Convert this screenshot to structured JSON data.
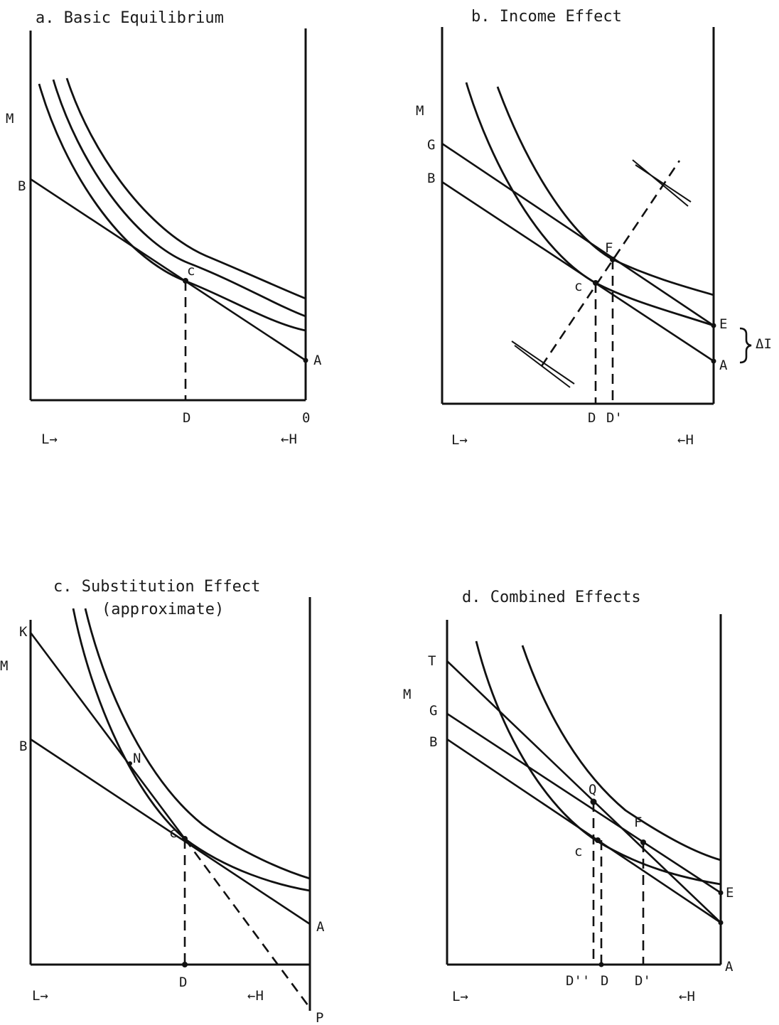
{
  "panel_a": {
    "title": "a.  Basic Equilibrium",
    "labels": {
      "M": "M",
      "B": "B",
      "c": "c",
      "A": "A",
      "D": "D",
      "O": "0",
      "L": "L→",
      "H": "←H"
    }
  },
  "panel_b": {
    "title": "b.  Income Effect",
    "labels": {
      "M": "M",
      "G": "G",
      "B": "B",
      "F": "F",
      "c": "c",
      "E": "E",
      "A": "A",
      "delta": "ΔI",
      "D": "D",
      "Dp": "D'",
      "L": "L→",
      "H": "←H"
    }
  },
  "panel_c": {
    "title": "c.  Substitution Effect",
    "subtitle": "(approximate)",
    "labels": {
      "K": "K",
      "M": "M",
      "B": "B",
      "N": "N",
      "c": "c",
      "A": "A",
      "D": "D",
      "P": "P",
      "L": "L→",
      "H": "←H"
    }
  },
  "panel_d": {
    "title": "d.  Combined Effects",
    "labels": {
      "T": "T",
      "M": "M",
      "G": "G",
      "B": "B",
      "Q": "Q",
      "F": "F",
      "c": "c",
      "E": "E",
      "A": "A",
      "Dpp": "D''",
      "D": "D",
      "Dp": "D'",
      "L": "L→",
      "H": "←H"
    }
  }
}
